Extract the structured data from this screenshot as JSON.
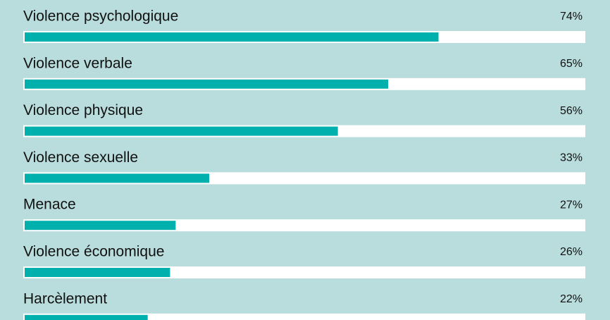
{
  "chart_data": {
    "type": "bar",
    "orientation": "horizontal",
    "categories": [
      "Violence psychologique",
      "Violence verbale",
      "Violence physique",
      "Violence sexuelle",
      "Menace",
      "Violence économique",
      "Harcèlement"
    ],
    "values": [
      74,
      65,
      56,
      33,
      27,
      26,
      22
    ],
    "value_labels": [
      "74%",
      "65%",
      "56%",
      "33%",
      "27%",
      "26%",
      "22%"
    ],
    "color": "#00b0ad",
    "xlim": [
      0,
      100
    ]
  }
}
